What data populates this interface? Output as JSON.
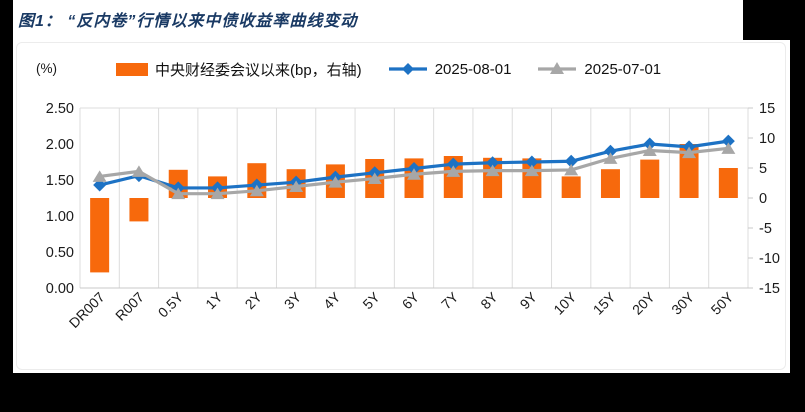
{
  "title": "图1：  “反内卷”行情以来中债收益率曲线变动",
  "unit_label": "(%)",
  "legend": [
    {
      "label": "中央财经委会议以来(bp，右轴)",
      "type": "bar",
      "color": "#f7690c"
    },
    {
      "label": "2025-08-01",
      "type": "line-diamond",
      "color": "#1d72c4"
    },
    {
      "label": "2025-07-01",
      "type": "line-triangle",
      "color": "#a7a7a7"
    }
  ],
  "chart_data": {
    "type": "bar",
    "subtype": "combo-bar-line",
    "title": "图1：“反内卷”行情以来中债收益率曲线变动",
    "categories": [
      "DR007",
      "R007",
      "0.5Y",
      "1Y",
      "2Y",
      "3Y",
      "4Y",
      "5Y",
      "6Y",
      "7Y",
      "8Y",
      "9Y",
      "10Y",
      "15Y",
      "20Y",
      "30Y",
      "50Y"
    ],
    "series": [
      {
        "name": "中央财经委会议以来(bp，右轴)",
        "type": "bar",
        "axis": "right",
        "unit": "bp",
        "color": "#f7690c",
        "values": [
          -12.4,
          -3.9,
          4.7,
          3.6,
          5.8,
          4.8,
          5.6,
          6.5,
          6.6,
          7.0,
          6.7,
          6.6,
          3.6,
          4.8,
          6.4,
          9.0,
          5.0
        ]
      },
      {
        "name": "2025-08-01",
        "type": "line",
        "marker": "diamond",
        "axis": "left",
        "unit": "%",
        "color": "#1d72c4",
        "values": [
          1.43,
          1.56,
          1.39,
          1.39,
          1.43,
          1.47,
          1.54,
          1.6,
          1.66,
          1.72,
          1.74,
          1.75,
          1.76,
          1.9,
          2.0,
          1.96,
          2.04
        ]
      },
      {
        "name": "2025-07-01",
        "type": "line",
        "marker": "triangle",
        "axis": "left",
        "unit": "%",
        "color": "#a7a7a7",
        "values": [
          1.55,
          1.62,
          1.31,
          1.31,
          1.35,
          1.41,
          1.47,
          1.52,
          1.58,
          1.62,
          1.63,
          1.63,
          1.64,
          1.8,
          1.91,
          1.88,
          1.94
        ]
      }
    ],
    "left_axis": {
      "label": "(%)",
      "ticks": [
        "2.50",
        "2.00",
        "1.50",
        "1.00",
        "0.50",
        "0.00"
      ],
      "min": 0,
      "max": 2.5
    },
    "right_axis": {
      "label": "bp",
      "ticks": [
        "15",
        "10",
        "5",
        "0",
        "-5",
        "-10",
        "-15"
      ],
      "min": -15,
      "max": 15
    },
    "grid": "vertical-only",
    "legend_position": "top"
  }
}
